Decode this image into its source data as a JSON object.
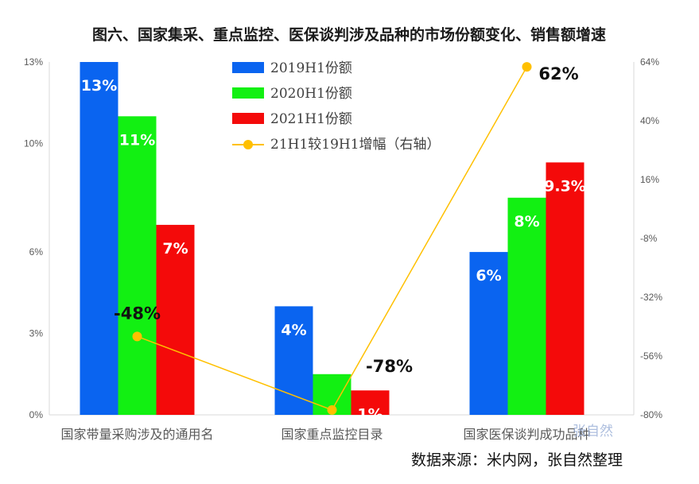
{
  "chart_data": {
    "type": "bar",
    "title": "图六、国家集采、重点监控、医保谈判涉及品种的市场份额变化、销售额增速",
    "categories": [
      "国家带量采购涉及的通用名",
      "国家重点监控目录",
      "国家医保谈判成功品种"
    ],
    "series": [
      {
        "name": "2019H1份额",
        "color": "#0a64f0",
        "values": [
          13,
          4,
          6
        ],
        "labels": [
          "13%",
          "4%",
          "6%"
        ]
      },
      {
        "name": "2020H1份额",
        "color": "#12f012",
        "values": [
          11,
          1.5,
          8
        ],
        "labels": [
          "11%",
          "",
          "8%"
        ]
      },
      {
        "name": "2021H1份额",
        "color": "#f40a0a",
        "values": [
          7,
          0.9,
          9.3
        ],
        "labels": [
          "7%",
          "1%",
          "9.3%"
        ]
      }
    ],
    "line_series": {
      "name": "21H1较19H1增幅（右轴）",
      "color": "#ffc000",
      "axis": "right",
      "values": [
        -48,
        -78,
        62
      ],
      "labels": [
        "-48%",
        "-78%",
        "62%"
      ]
    },
    "left_axis": {
      "min": 0,
      "max": 13,
      "ticks": [
        0,
        3,
        6,
        10,
        13
      ],
      "tick_labels": [
        "0%",
        "3%",
        "6%",
        "10%",
        "13%"
      ]
    },
    "right_axis": {
      "min": -80,
      "max": 64,
      "ticks": [
        -80,
        -56,
        -32,
        -8,
        16,
        40,
        64
      ],
      "tick_labels": [
        "-80%",
        "-56%",
        "-32%",
        "-8%",
        "16%",
        "40%",
        "64%"
      ]
    },
    "legend_position": "top-center",
    "grid": false
  },
  "source_text": "数据来源：米内网，张自然整理",
  "watermark_text": "张自然"
}
